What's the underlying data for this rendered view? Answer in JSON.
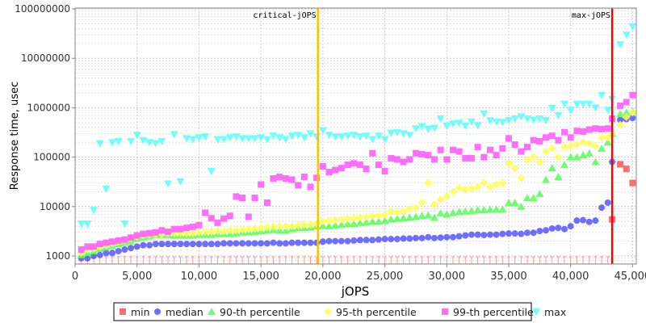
{
  "chart_data": {
    "type": "scatter",
    "title": "",
    "xlabel": "jOPS",
    "ylabel": "Response time, usec",
    "xscale": "linear",
    "yscale": "log",
    "xlim": [
      0,
      45300
    ],
    "ylim": [
      686,
      104000000
    ],
    "grid": true,
    "legend_position": "bottom",
    "x_ticks": [
      "0",
      "5,000",
      "10,000",
      "15,000",
      "20,000",
      "25,000",
      "30,000",
      "35,000",
      "40,000",
      "45,000"
    ],
    "x_tick_values": [
      0,
      5000,
      10000,
      15000,
      20000,
      25000,
      30000,
      35000,
      40000,
      45000
    ],
    "y_ticks": [
      "1000",
      "10000",
      "100000",
      "1000000",
      "10000000",
      "100000000"
    ],
    "y_tick_values": [
      1000,
      10000,
      100000,
      1000000,
      10000000,
      100000000
    ],
    "annotations": [
      {
        "label": "critical-jOPS",
        "x": 19600,
        "color": "#ffc000"
      },
      {
        "label": "max-jOPS",
        "x": 43350,
        "color": "#ff0000"
      }
    ],
    "x": [
      500,
      1000,
      1500,
      2000,
      2500,
      3000,
      3500,
      4000,
      4500,
      5000,
      5500,
      6000,
      6500,
      7000,
      7500,
      8000,
      8500,
      9000,
      9500,
      10000,
      10500,
      11000,
      11500,
      12000,
      12500,
      13000,
      13500,
      14000,
      14500,
      15000,
      15500,
      16000,
      16500,
      17000,
      17500,
      18000,
      18500,
      19000,
      19500,
      20000,
      20500,
      21000,
      21500,
      22000,
      22500,
      23000,
      23500,
      24000,
      24500,
      25000,
      25500,
      26000,
      26500,
      27000,
      27500,
      28000,
      28500,
      29000,
      29500,
      30000,
      30500,
      31000,
      31500,
      32000,
      32500,
      33000,
      33500,
      34000,
      34500,
      35000,
      35500,
      36000,
      36500,
      37000,
      37500,
      38000,
      38500,
      39000,
      39500,
      40000,
      40500,
      41000,
      41500,
      42000,
      42500,
      43000,
      43350,
      44000,
      44500,
      45000
    ],
    "series": [
      {
        "name": "min",
        "color": "#ff5555",
        "marker": "square",
        "values": [
          500,
          500,
          500,
          500,
          500,
          500,
          500,
          500,
          500,
          500,
          500,
          500,
          500,
          500,
          500,
          500,
          500,
          500,
          500,
          500,
          500,
          500,
          500,
          500,
          500,
          500,
          500,
          500,
          500,
          500,
          500,
          500,
          500,
          500,
          500,
          500,
          500,
          500,
          500,
          500,
          500,
          500,
          500,
          500,
          500,
          500,
          500,
          500,
          500,
          500,
          500,
          500,
          500,
          500,
          500,
          500,
          500,
          500,
          500,
          500,
          500,
          500,
          500,
          500,
          500,
          500,
          500,
          500,
          500,
          500,
          500,
          500,
          500,
          500,
          500,
          500,
          500,
          500,
          500,
          500,
          500,
          500,
          500,
          500,
          500,
          500,
          5500,
          72000,
          58000,
          30000
        ]
      },
      {
        "name": "median",
        "color": "#5555ff",
        "marker": "circle",
        "values": [
          900,
          900,
          1000,
          1050,
          1150,
          1150,
          1250,
          1350,
          1450,
          1550,
          1650,
          1650,
          1750,
          1750,
          1750,
          1750,
          1750,
          1750,
          1750,
          1750,
          1750,
          1750,
          1750,
          1800,
          1800,
          1800,
          1800,
          1800,
          1800,
          1800,
          1800,
          1850,
          1800,
          1800,
          1850,
          1850,
          1850,
          1850,
          1850,
          1950,
          2000,
          2000,
          2000,
          2000,
          2050,
          2100,
          2100,
          2100,
          2150,
          2200,
          2200,
          2200,
          2250,
          2250,
          2300,
          2300,
          2400,
          2300,
          2350,
          2400,
          2400,
          2500,
          2600,
          2700,
          2700,
          2650,
          2700,
          2700,
          2800,
          2850,
          2850,
          2800,
          2950,
          2950,
          3200,
          3300,
          3600,
          3700,
          3500,
          4000,
          5200,
          5300,
          4900,
          5200,
          9500,
          12000,
          80000,
          570000,
          590000,
          620000
        ]
      },
      {
        "name": "90-th percentile",
        "color": "#55ff55",
        "marker": "triangle-up",
        "values": [
          1050,
          1150,
          1250,
          1400,
          1500,
          1600,
          1750,
          1850,
          2000,
          2250,
          2400,
          2500,
          2700,
          2700,
          2700,
          2600,
          2600,
          2600,
          2600,
          2700,
          2700,
          2700,
          2800,
          2800,
          2800,
          2900,
          3000,
          3000,
          3100,
          3200,
          3300,
          3400,
          3300,
          3300,
          3600,
          3700,
          3700,
          3800,
          4000,
          4100,
          4000,
          4200,
          4300,
          4500,
          4500,
          4700,
          4800,
          5000,
          5000,
          5200,
          5500,
          5700,
          5800,
          6000,
          6200,
          6500,
          6700,
          6000,
          7300,
          7000,
          7500,
          7800,
          8000,
          8200,
          8500,
          8500,
          8700,
          8800,
          8800,
          12000,
          12000,
          10000,
          15000,
          15000,
          18000,
          35000,
          60000,
          40000,
          70000,
          100000,
          100000,
          110000,
          120000,
          80000,
          150000,
          200000,
          300000,
          750000,
          800000,
          850000
        ]
      },
      {
        "name": "95-th percentile",
        "color": "#ffff55",
        "marker": "diamond",
        "values": [
          1150,
          1350,
          1400,
          1550,
          1650,
          1800,
          1950,
          2050,
          2250,
          2450,
          2600,
          2700,
          2800,
          2800,
          2900,
          2900,
          2900,
          2900,
          2900,
          3000,
          3100,
          3100,
          3200,
          3200,
          3300,
          3300,
          3400,
          3500,
          3600,
          3700,
          3800,
          3900,
          4000,
          4000,
          4000,
          4200,
          4300,
          4300,
          4500,
          5000,
          5200,
          5300,
          5500,
          5600,
          5800,
          6000,
          6200,
          6400,
          6600,
          6800,
          8000,
          7500,
          8000,
          9000,
          9500,
          12000,
          30000,
          11000,
          14000,
          16000,
          20000,
          24000,
          22000,
          23000,
          25000,
          30000,
          25000,
          28000,
          30000,
          75000,
          60000,
          38000,
          90000,
          100000,
          80000,
          130000,
          150000,
          100000,
          160000,
          170000,
          180000,
          200000,
          190000,
          170000,
          250000,
          250000,
          300000,
          450000,
          650000,
          800000
        ]
      },
      {
        "name": "99-th percentile",
        "color": "#ff55ff",
        "marker": "square",
        "values": [
          1350,
          1550,
          1550,
          1750,
          1850,
          1950,
          2050,
          2150,
          2350,
          2600,
          2800,
          2900,
          3000,
          3300,
          3100,
          3500,
          3500,
          3700,
          3900,
          4200,
          7500,
          5800,
          4700,
          5700,
          6500,
          16000,
          15000,
          6200,
          15000,
          28000,
          12000,
          37000,
          40000,
          37000,
          35000,
          27000,
          40000,
          25000,
          38000,
          65000,
          50000,
          55000,
          60000,
          70000,
          75000,
          70000,
          58000,
          120000,
          70000,
          52000,
          95000,
          90000,
          80000,
          90000,
          120000,
          115000,
          110000,
          90000,
          140000,
          90000,
          140000,
          130000,
          95000,
          95000,
          160000,
          100000,
          140000,
          110000,
          150000,
          240000,
          180000,
          130000,
          160000,
          220000,
          210000,
          250000,
          270000,
          220000,
          320000,
          250000,
          340000,
          330000,
          360000,
          380000,
          370000,
          380000,
          600000,
          1100000,
          1300000,
          1800000
        ]
      },
      {
        "name": "max",
        "color": "#55ffff",
        "marker": "triangle-down",
        "values": [
          4500,
          4500,
          8500,
          190000,
          23000,
          200000,
          210000,
          4500,
          210000,
          280000,
          220000,
          200000,
          190000,
          210000,
          29000,
          290000,
          32000,
          240000,
          230000,
          250000,
          260000,
          52000,
          230000,
          230000,
          250000,
          260000,
          240000,
          240000,
          240000,
          250000,
          230000,
          270000,
          250000,
          230000,
          270000,
          280000,
          250000,
          300000,
          260000,
          350000,
          280000,
          260000,
          260000,
          270000,
          280000,
          260000,
          270000,
          230000,
          270000,
          230000,
          310000,
          320000,
          300000,
          280000,
          380000,
          420000,
          370000,
          390000,
          600000,
          430000,
          480000,
          490000,
          430000,
          520000,
          440000,
          760000,
          550000,
          520000,
          510000,
          560000,
          600000,
          660000,
          600000,
          570000,
          600000,
          560000,
          980000,
          700000,
          1200000,
          900000,
          1200000,
          1200000,
          1200000,
          1000000,
          1800000,
          900000,
          1500000,
          19000000,
          30000000,
          44000000
        ]
      }
    ]
  }
}
